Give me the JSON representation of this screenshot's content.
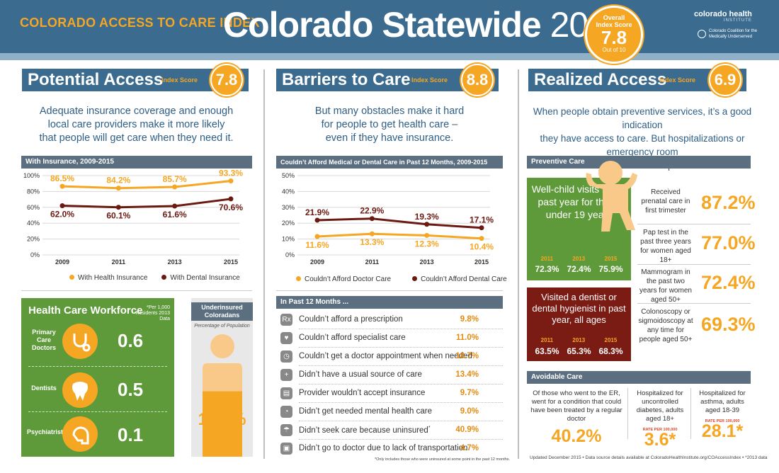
{
  "header": {
    "eyebrow": "COLORADO ACCESS TO CARE INDEX",
    "title": "Colorado Statewide",
    "year": "2015",
    "overall_label1": "Overall",
    "overall_label2": "Index Score",
    "overall_value": "7.8",
    "overall_out_of": "Out of 10",
    "logo1": "colorado health",
    "logo1_sub": "INSTITUTE",
    "logo2_l1": "Colorado Coalition for the",
    "logo2_l2": "Medically Underserved"
  },
  "potential": {
    "title": "Potential Access",
    "score_label": "Index Score",
    "score": "7.8",
    "lead_l1": "Adequate insurance coverage and enough",
    "lead_l2": "local care providers make it more likely",
    "lead_l3": "that people will get care when they need it.",
    "chart_title": "With Insurance, 2009-2015",
    "legend_a": "With Health Insurance",
    "legend_b": "With Dental Insurance"
  },
  "barriers": {
    "title": "Barriers to Care",
    "score_label": "Index Score",
    "score": "8.8",
    "lead_l1": "But many obstacles make it hard",
    "lead_l2": "for people to get health care –",
    "lead_l3": "even if they have insurance.",
    "chart_title": "Couldn’t Afford Medical or Dental Care in Past 12 Months, 2009-2015",
    "legend_a": "Couldn’t Afford Doctor Care",
    "legend_b": "Couldn’t Afford Dental Care",
    "list_title": "In Past 12 Months ...",
    "items": [
      {
        "icon": "Rx",
        "label": "Couldn’t afford a prescription",
        "value": "9.8%"
      },
      {
        "icon": "♥",
        "label": "Couldn’t afford specialist care",
        "value": "11.0%"
      },
      {
        "icon": "◷",
        "label": "Couldn’t get a doctor appointment when needed",
        "value": "18.7%"
      },
      {
        "icon": "+",
        "label": "Didn’t have a usual source of care",
        "value": "13.4%"
      },
      {
        "icon": "▤",
        "label": "Provider wouldn’t accept insurance",
        "value": "9.7%"
      },
      {
        "icon": "◔",
        "label": "Didn’t get needed mental health care",
        "value": "9.0%"
      },
      {
        "icon": "☂",
        "label": "Didn’t seek care because uninsured",
        "value": "40.9%"
      },
      {
        "icon": "▣",
        "label": "Didn’t go to doctor due to lack of transportation",
        "value": "4.7%"
      }
    ],
    "footnote": "*Only includes those who were uninsured at some point in the past 12 months."
  },
  "workforce": {
    "title": "Health Care Workforce",
    "note": "*Per 1,000 Residents 2013 Data",
    "rows": [
      {
        "label": "Primary Care Doctors",
        "value": "0.6"
      },
      {
        "label": "Dentists",
        "value": "0.5"
      },
      {
        "label": "Psychiatrists",
        "value": "0.1"
      }
    ]
  },
  "underinsured": {
    "title": "Underinsured Coloradans",
    "sub": "Percentage of Population",
    "value": "16.4%",
    "fraction": 0.164
  },
  "realized": {
    "title": "Realized Access",
    "score_label": "Index Score",
    "score": "6.9",
    "lead_l1": "When people obtain preventive services, it’s a good indication",
    "lead_l2": "they have access to care. But hospitalizations or emergency room",
    "lead_l3": "visits may indicate inadequate access.",
    "preventive_title": "Preventive Care",
    "wellchild": {
      "text": "Well-child visits in the past year for those under 19 years",
      "years": [
        "2011",
        "2013",
        "2015"
      ],
      "values": [
        "72.3%",
        "72.4%",
        "75.9%"
      ]
    },
    "dentist": {
      "text": "Visited a dentist  or dental hygienist in past year, all ages",
      "years": [
        "2011",
        "2013",
        "2015"
      ],
      "values": [
        "63.5%",
        "65.3%",
        "68.3%"
      ]
    },
    "preventive": [
      {
        "label": "Received prenatal care in first trimester",
        "value": "87.2%"
      },
      {
        "label": "Pap test in the past three years for women aged 18+",
        "value": "77.0%"
      },
      {
        "label": "Mammogram in the past two years for women aged 50+",
        "value": "72.4%"
      },
      {
        "label": "Colonoscopy or sigmoidoscopy at any time for people aged 50+",
        "value": "69.3%"
      }
    ],
    "avoidable_title": "Avoidable Care",
    "avoidable": [
      {
        "label": "Of those who went to the ER, went for a condition that could have been treated by a regular doctor",
        "rate": "",
        "value": "40.2%"
      },
      {
        "label": "Hospitalized for uncontrolled diabetes, adults aged 18+",
        "rate": "RATE PER 100,000",
        "value": "3.6*"
      },
      {
        "label": "Hospitalized for asthma, adults aged 18-39",
        "rate": "RATE PER 100,000",
        "value": "28.1*"
      }
    ]
  },
  "footer": {
    "text": "Updated December 2015  •  Data source details available at ColoradoHealthInstitute.org/COAccessIndex  •  *2013 data"
  },
  "chart_data": [
    {
      "type": "line",
      "title": "With Insurance, 2009-2015",
      "x": [
        "2009",
        "2011",
        "2013",
        "2015"
      ],
      "ylim": [
        0,
        100
      ],
      "yticks": [
        "0%",
        "20%",
        "40%",
        "60%",
        "80%",
        "100%"
      ],
      "series": [
        {
          "name": "With Health Insurance",
          "color": "#f5a623",
          "values": [
            86.5,
            84.2,
            85.7,
            93.3
          ],
          "labels": [
            "86.5%",
            "84.2%",
            "85.7%",
            "93.3%"
          ]
        },
        {
          "name": "With Dental Insurance",
          "color": "#6b1a12",
          "values": [
            62.0,
            60.1,
            61.6,
            70.6
          ],
          "labels": [
            "62.0%",
            "60.1%",
            "61.6%",
            "70.6%"
          ]
        }
      ]
    },
    {
      "type": "line",
      "title": "Couldn’t Afford Medical or Dental Care in Past 12 Months, 2009-2015",
      "x": [
        "2009",
        "2011",
        "2013",
        "2015"
      ],
      "ylim": [
        0,
        50
      ],
      "yticks": [
        "0%",
        "10%",
        "20%",
        "30%",
        "40%",
        "50%"
      ],
      "series": [
        {
          "name": "Couldn’t Afford Doctor Care",
          "color": "#f5a623",
          "values": [
            11.6,
            13.3,
            12.3,
            10.4
          ],
          "labels": [
            "11.6%",
            "13.3%",
            "12.3%",
            "10.4%"
          ]
        },
        {
          "name": "Couldn’t Afford Dental Care",
          "color": "#6b1a12",
          "values": [
            21.9,
            22.9,
            19.3,
            17.1
          ],
          "labels": [
            "21.9%",
            "22.9%",
            "19.3%",
            "17.1%"
          ]
        }
      ]
    }
  ]
}
